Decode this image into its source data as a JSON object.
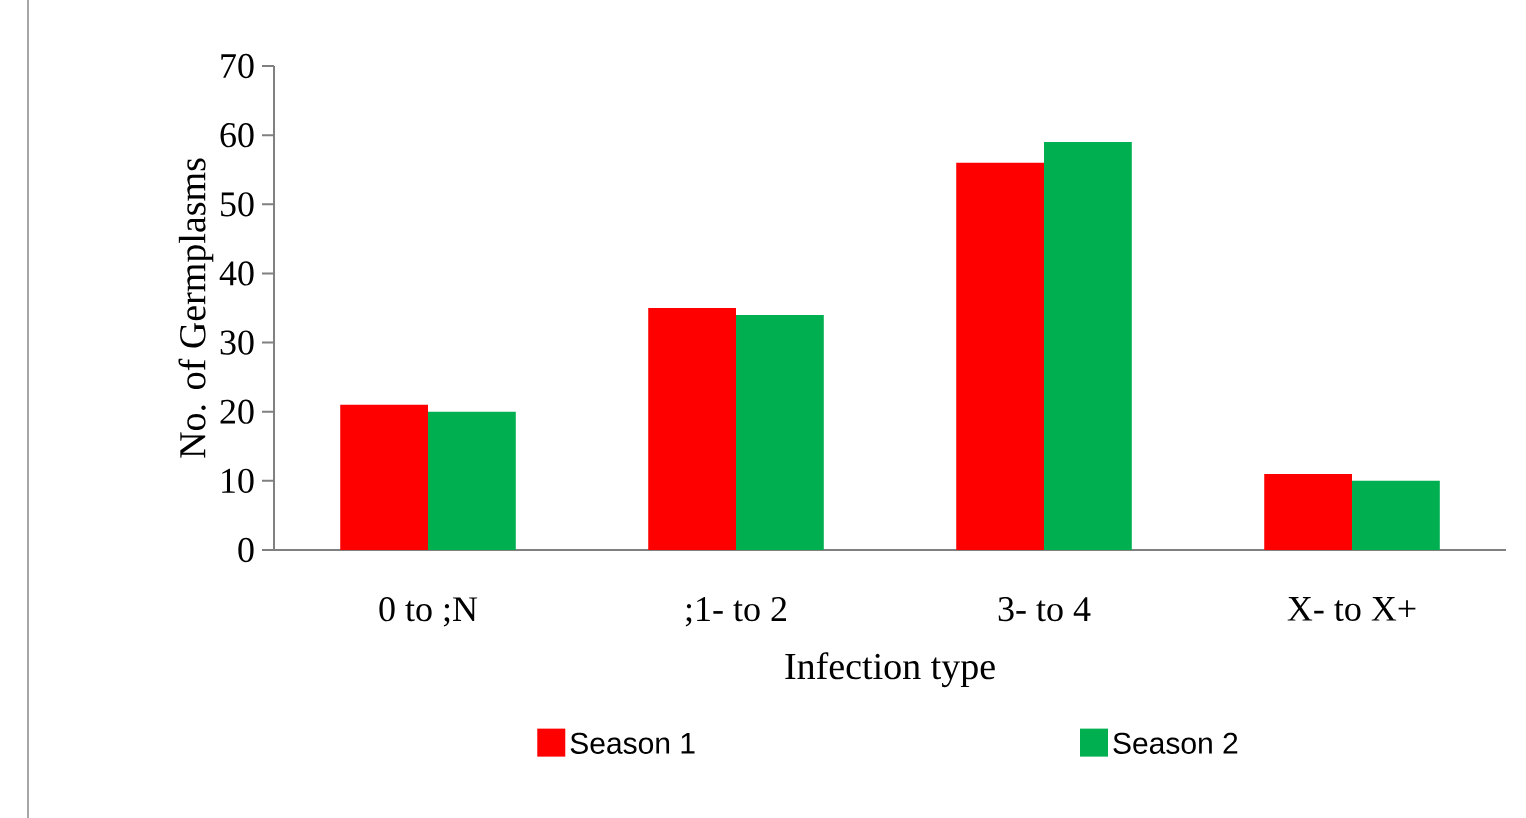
{
  "chart_data": {
    "type": "bar",
    "xlabel": "Infection type",
    "ylabel": "No. of Germplasms",
    "categories": [
      "0 to ;N",
      ";1- to 2",
      "3- to 4",
      "X- to X+"
    ],
    "series": [
      {
        "name": "Season 1",
        "color": "#ff0000",
        "values": [
          21,
          35,
          56,
          11
        ]
      },
      {
        "name": "Season 2",
        "color": "#00b050",
        "values": [
          20,
          34,
          59,
          10
        ]
      }
    ],
    "ylim": [
      0,
      70
    ],
    "yticks": [
      0,
      10,
      20,
      30,
      40,
      50,
      60,
      70
    ],
    "grid": false,
    "legend": "bottom"
  }
}
